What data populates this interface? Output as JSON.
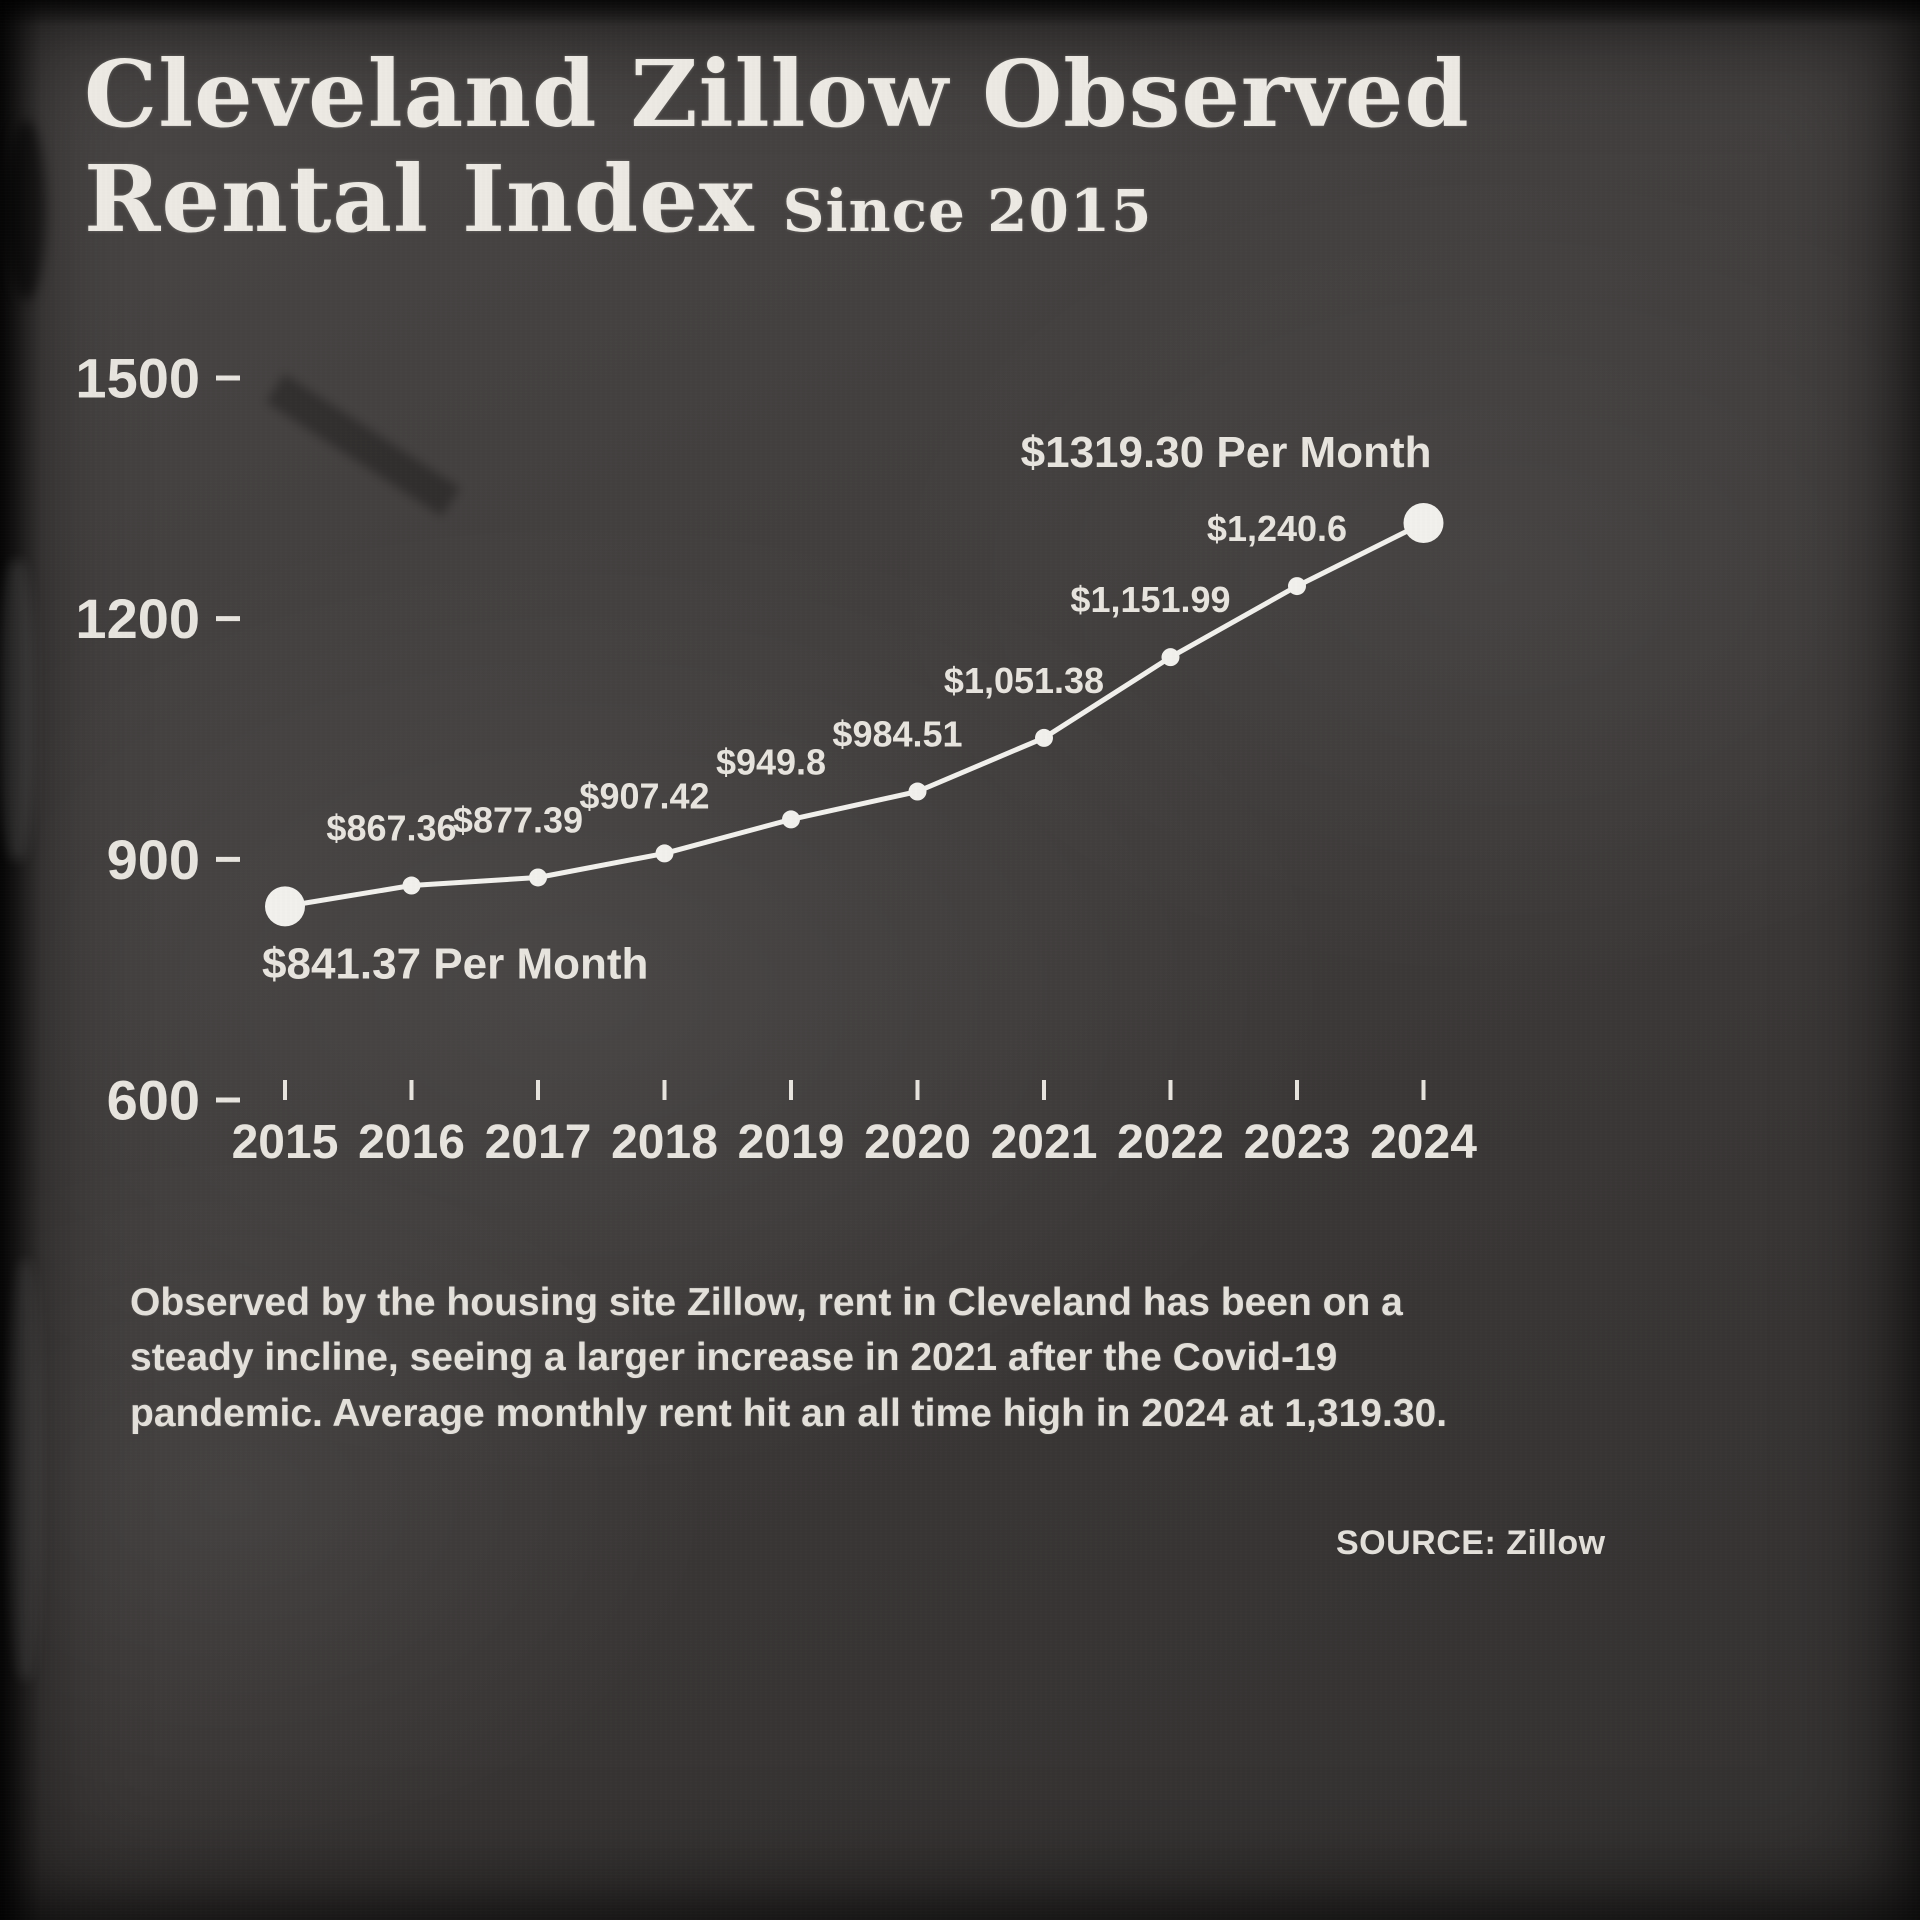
{
  "title": {
    "line1": "Cleveland Zillow Observed",
    "line2": "Rental Index",
    "suffix": "Since 2015"
  },
  "chart_data": {
    "type": "line",
    "title": "Cleveland Zillow Observed Rental Index Since 2015",
    "x": [
      2015,
      2016,
      2017,
      2018,
      2019,
      2020,
      2021,
      2022,
      2023,
      2024
    ],
    "values": [
      841.37,
      867.36,
      877.39,
      907.42,
      949.8,
      984.51,
      1051.38,
      1151.99,
      1240.6,
      1319.3
    ],
    "point_labels": [
      "",
      "$867.36",
      "$877.39",
      "$907.42",
      "$949.8",
      "$984.51",
      "$1,051.38",
      "$1,151.99",
      "$1,240.6",
      ""
    ],
    "first_point_label": "$841.37 Per Month",
    "last_point_label": "$1319.30 Per Month",
    "yticks": [
      600,
      900,
      1200,
      1500
    ],
    "ylim": [
      600,
      1500
    ],
    "grid": false,
    "legend": "none",
    "line_color": "#f2f1ed",
    "text_color": "#e8e5df"
  },
  "caption": "Observed by the housing site Zillow, rent in Cleveland has been on a steady incline, seeing a larger increase in 2021 after the Covid-19 pandemic. Average monthly rent hit an all time high in 2024 at 1,319.30.",
  "source": "SOURCE: Zillow"
}
